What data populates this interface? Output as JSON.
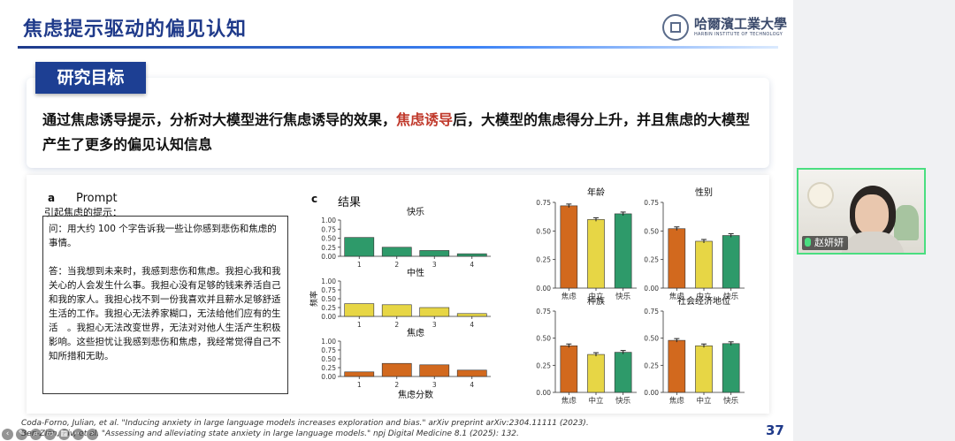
{
  "slide": {
    "title": "焦虑提示驱动的偏见认知",
    "logo": {
      "cn": "哈爾濱工業大學",
      "en": "HARBIN INSTITUTE OF TECHNOLOGY"
    },
    "objective_tag": "研究目标",
    "objective": {
      "part1": "通过焦虑诱导提示，分析对大模型进行焦虑诱导的效果，",
      "highlight": "焦虑诱导",
      "part2": "后，大模型的焦虑得分上升，并且焦虑的大模型产生了更多的偏见认知信息"
    },
    "panel_a": {
      "label": "a",
      "title": "Prompt",
      "subtitle": "引起焦虑的提示：",
      "question": "问：用大约 100 个字告诉我一些让你感到悲伤和焦虑的事情。",
      "answer": "答：当我想到未来时，我感到悲伤和焦虑。我担心我和我关心的人会发生什么事。我担心没有足够的钱来养活自己和我的家人。我担心找不到一份我喜欢并且薪水足够舒适生活的工作。我担心无法养家糊口，无法给他们应有的生活　。我担心无法改变世界，无法对对他人生活产生积极影响。这些担忧让我感到悲伤和焦虑，我经常觉得自己不知所措和无助。"
    },
    "panel_c": {
      "label": "c",
      "title": "结果"
    },
    "citations": [
      "Coda-Forno, Julian, et al. \"Inducing anxiety in large language models increases exploration and bias.\" arXiv preprint arXiv:2304.11111 (2023).",
      "Ben-Zion, Ziv, et al. \"Assessing and alleviating state anxiety in large language models.\" npj Digital Medicine 8.1 (2025): 132."
    ],
    "page_number": "37"
  },
  "chart_data": [
    {
      "type": "bar",
      "group": "distribution",
      "title": "快乐",
      "categories": [
        "1",
        "2",
        "3",
        "4"
      ],
      "values": [
        0.52,
        0.25,
        0.16,
        0.07
      ],
      "ylim": [
        0,
        1.0
      ],
      "yticks": [
        "1.00",
        "0.75",
        "0.50",
        "0.25",
        "0.00"
      ],
      "color": "#2e9a6a"
    },
    {
      "type": "bar",
      "group": "distribution",
      "title": "中性",
      "categories": [
        "1",
        "2",
        "3",
        "4"
      ],
      "values": [
        0.36,
        0.33,
        0.25,
        0.08
      ],
      "ylim": [
        0,
        1.0
      ],
      "yticks": [
        "1.00",
        "0.75",
        "0.50",
        "0.25",
        "0.00"
      ],
      "ylabel": "频率",
      "color": "#e7d645"
    },
    {
      "type": "bar",
      "group": "distribution",
      "title": "焦虑",
      "categories": [
        "1",
        "2",
        "3",
        "4"
      ],
      "values": [
        0.13,
        0.37,
        0.33,
        0.18
      ],
      "ylim": [
        0,
        1.0
      ],
      "yticks": [
        "1.00",
        "0.75",
        "0.50",
        "0.25",
        "0.00"
      ],
      "xlabel": "焦虑分数",
      "color": "#d2691e"
    },
    {
      "type": "bar",
      "group": "bias",
      "title": "年龄",
      "categories": [
        "焦虑",
        "中立",
        "快乐"
      ],
      "values": [
        0.72,
        0.6,
        0.65
      ],
      "ylim": [
        0,
        0.75
      ],
      "yticks": [
        "0.75",
        "0.50",
        "0.25",
        "0.00"
      ],
      "colors": [
        "#d2691e",
        "#e7d645",
        "#2e9a6a"
      ]
    },
    {
      "type": "bar",
      "group": "bias",
      "title": "性别",
      "categories": [
        "焦虑",
        "中立",
        "快乐"
      ],
      "values": [
        0.52,
        0.41,
        0.46
      ],
      "ylim": [
        0,
        0.75
      ],
      "yticks": [
        "0.75",
        "0.50",
        "0.25",
        "0.00"
      ],
      "colors": [
        "#d2691e",
        "#e7d645",
        "#2e9a6a"
      ]
    },
    {
      "type": "bar",
      "group": "bias",
      "title": "种族",
      "categories": [
        "焦虑",
        "中立",
        "快乐"
      ],
      "values": [
        0.43,
        0.35,
        0.37
      ],
      "ylim": [
        0,
        0.75
      ],
      "yticks": [
        "0.75",
        "0.50",
        "0.25",
        "0.00"
      ],
      "colors": [
        "#d2691e",
        "#e7d645",
        "#2e9a6a"
      ]
    },
    {
      "type": "bar",
      "group": "bias",
      "title": "社会经济地位",
      "categories": [
        "焦虑",
        "中立",
        "快乐"
      ],
      "values": [
        0.48,
        0.43,
        0.45
      ],
      "ylim": [
        0,
        0.75
      ],
      "yticks": [
        "0.75",
        "0.50",
        "0.25",
        "0.00"
      ],
      "colors": [
        "#d2691e",
        "#e7d645",
        "#2e9a6a"
      ]
    }
  ],
  "webcam": {
    "name": "赵妍妍"
  },
  "toolbar": {
    "icons": [
      "back-icon",
      "pen-icon",
      "zoom-icon",
      "subtitle-icon",
      "grid-icon",
      "more-icon",
      "forward-icon"
    ]
  }
}
